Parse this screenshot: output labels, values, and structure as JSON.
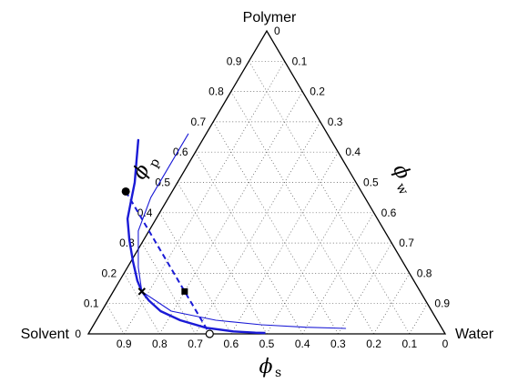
{
  "chart_data": {
    "type": "ternary",
    "vertices": {
      "top": "Polymer",
      "left": "Solvent",
      "right": "Water"
    },
    "axes": {
      "left": {
        "symbol": "ϕ",
        "subscript": "p",
        "ticks": [
          "0",
          "0.1",
          "0.2",
          "0.3",
          "0.4",
          "0.5",
          "0.6",
          "0.7",
          "0.8",
          "0.9"
        ]
      },
      "right": {
        "symbol": "ϕ",
        "subscript": "w",
        "ticks": [
          "0",
          "0.1",
          "0.2",
          "0.3",
          "0.4",
          "0.5",
          "0.6",
          "0.7",
          "0.8",
          "0.9"
        ]
      },
      "bottom": {
        "symbol": "ϕ",
        "subscript": "s",
        "ticks": [
          "0",
          "0.1",
          "0.2",
          "0.3",
          "0.4",
          "0.5",
          "0.6",
          "0.7",
          "0.8",
          "0.9"
        ]
      }
    },
    "grid": true,
    "grid_step": 0.1,
    "series": [
      {
        "style": "thick",
        "color": "#1a1ad6",
        "points": [
          [
            0.54,
            0.64
          ],
          [
            0.58,
            0.57
          ],
          [
            0.62,
            0.5
          ],
          [
            0.66,
            0.44
          ],
          [
            0.7,
            0.38
          ],
          [
            0.73,
            0.31
          ],
          [
            0.755,
            0.24
          ],
          [
            0.775,
            0.175
          ],
          [
            0.78,
            0.14
          ],
          [
            0.775,
            0.11
          ],
          [
            0.76,
            0.075
          ],
          [
            0.72,
            0.045
          ],
          [
            0.66,
            0.02
          ],
          [
            0.59,
            0.008
          ],
          [
            0.53,
            0.004
          ],
          [
            0.505,
            0.003
          ]
        ]
      },
      {
        "style": "thin",
        "color": "#1a1ad6",
        "points": [
          [
            0.78,
            0.14
          ],
          [
            0.73,
            0.075
          ],
          [
            0.62,
            0.045
          ],
          [
            0.5,
            0.03
          ],
          [
            0.38,
            0.022
          ],
          [
            0.27,
            0.018
          ]
        ]
      },
      {
        "style": "thin",
        "color": "#1a1ad6",
        "points": [
          [
            0.78,
            0.14
          ],
          [
            0.75,
            0.22
          ],
          [
            0.69,
            0.34
          ],
          [
            0.6,
            0.45
          ],
          [
            0.5,
            0.55
          ],
          [
            0.39,
            0.66
          ]
        ]
      }
    ],
    "tie_line": {
      "style": "dashed",
      "color": "#1a1ad6",
      "from": [
        0.66,
        0.47
      ],
      "to": [
        0.66,
        0.0
      ]
    },
    "markers": [
      {
        "shape": "filled-circle",
        "s": 0.66,
        "p": 0.47
      },
      {
        "shape": "filled-square",
        "s": 0.66,
        "p": 0.14
      },
      {
        "shape": "open-circle",
        "s": 0.66,
        "p": 0.0
      },
      {
        "shape": "cross",
        "s": 0.78,
        "p": 0.14
      }
    ]
  }
}
